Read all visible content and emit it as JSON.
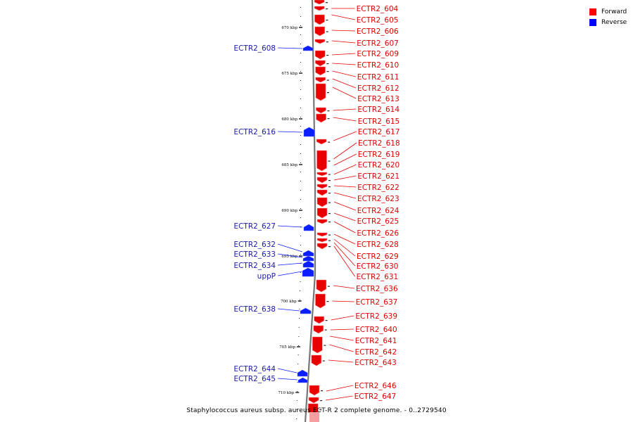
{
  "caption": "Staphylococcus aureus subsp. aureus ECT-R 2 complete genome. - 0..2729540",
  "legend": [
    {
      "label": "Forward",
      "color": "#ff0000"
    },
    {
      "label": "Reverse",
      "color": "#0000ff"
    }
  ],
  "colors": {
    "forward": "#e80000",
    "reverse": "#0a1eff",
    "forward_text": "#dd0000",
    "reverse_text": "#1a1aa8",
    "backbone": "#777777"
  },
  "ticks": [
    "670 kbp",
    "675 kbp",
    "680 kbp",
    "685 kbp",
    "690 kbp",
    "695 kbp",
    "700 kbp",
    "705 kbp",
    "710 kbp"
  ],
  "forward_genes": [
    "ECTR2_604",
    "ECTR2_605",
    "ECTR2_606",
    "ECTR2_607",
    "ECTR2_609",
    "ECTR2_610",
    "ECTR2_611",
    "ECTR2_612",
    "ECTR2_613",
    "ECTR2_614",
    "ECTR2_615",
    "ECTR2_617",
    "ECTR2_618",
    "ECTR2_619",
    "ECTR2_620",
    "ECTR2_621",
    "ECTR2_622",
    "ECTR2_623",
    "ECTR2_624",
    "ECTR2_625",
    "ECTR2_626",
    "ECTR2_628",
    "ECTR2_629",
    "ECTR2_630",
    "ECTR2_631",
    "ECTR2_636",
    "ECTR2_637",
    "ECTR2_639",
    "ECTR2_640",
    "ECTR2_641",
    "ECTR2_642",
    "ECTR2_643",
    "ECTR2_646",
    "ECTR2_647"
  ],
  "reverse_genes": [
    "ECTR2_608",
    "ECTR2_616",
    "ECTR2_627",
    "ECTR2_632",
    "ECTR2_633",
    "ECTR2_634",
    "uppP",
    "ECTR2_638",
    "ECTR2_644",
    "ECTR2_645"
  ]
}
